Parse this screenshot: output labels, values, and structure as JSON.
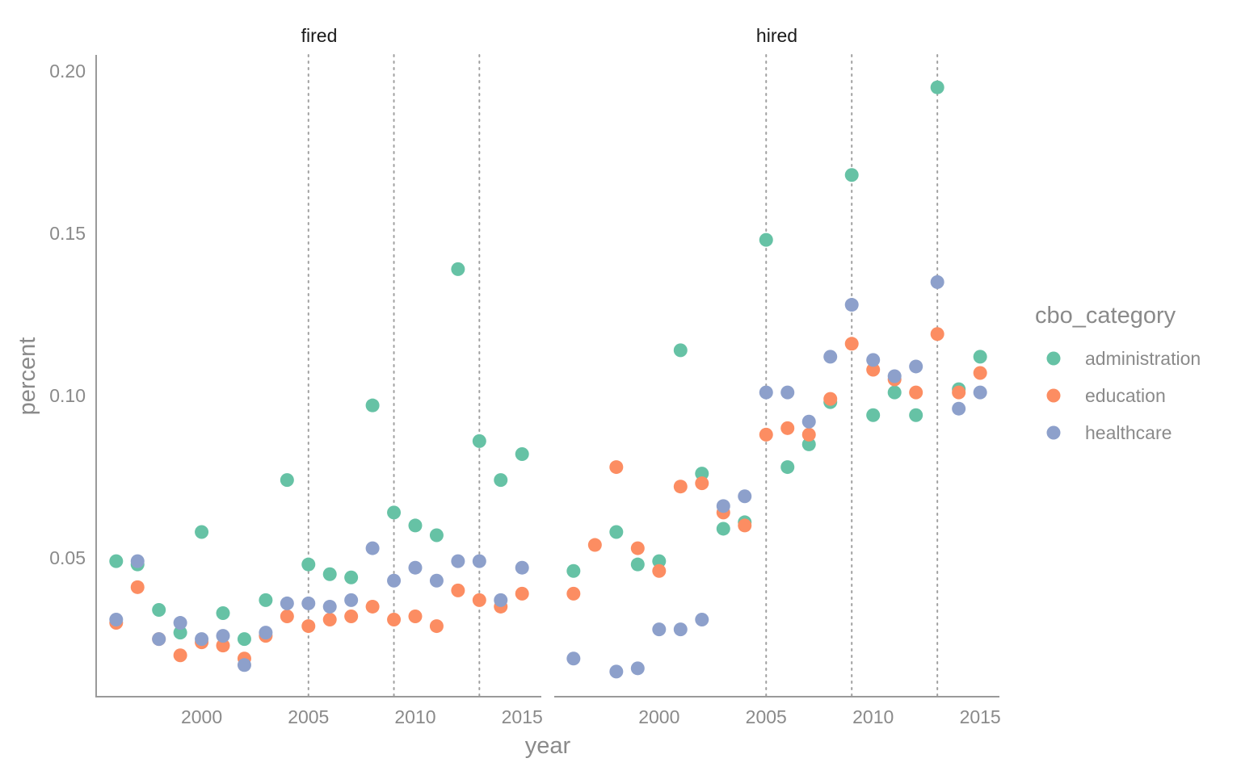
{
  "chart_data": {
    "type": "scatter",
    "xlabel": "year",
    "ylabel": "percent",
    "xlim": [
      1995.1,
      2015.9
    ],
    "ylim": [
      0.0075,
      0.205
    ],
    "x_ticks": [
      2000,
      2005,
      2010,
      2015
    ],
    "y_ticks": [
      0.05,
      0.1,
      0.15,
      0.2
    ],
    "y_tick_labels": [
      "0.05",
      "0.10",
      "0.15",
      "0.20"
    ],
    "vlines": [
      2005,
      2009,
      2013
    ],
    "grid": false,
    "legend": {
      "title": "cbo_category",
      "position": "right",
      "entries": [
        "administration",
        "education",
        "healthcare"
      ]
    },
    "colors": {
      "administration": "#66c2a5",
      "education": "#fc8d62",
      "healthcare": "#8da0cb",
      "axis": "#9a9a9a",
      "vline": "#a0a0a0"
    },
    "panels": [
      {
        "title": "fired",
        "series": [
          {
            "name": "administration",
            "x": [
              1996,
              1997,
              1998,
              1999,
              2000,
              2001,
              2002,
              2003,
              2004,
              2005,
              2006,
              2007,
              2008,
              2009,
              2010,
              2011,
              2012,
              2013,
              2014,
              2015
            ],
            "y": [
              0.049,
              0.048,
              0.034,
              0.027,
              0.058,
              0.033,
              0.025,
              0.037,
              0.074,
              0.048,
              0.045,
              0.044,
              0.097,
              0.064,
              0.06,
              0.057,
              0.139,
              0.086,
              0.074,
              0.082
            ]
          },
          {
            "name": "education",
            "x": [
              1996,
              1997,
              1998,
              1999,
              2000,
              2001,
              2002,
              2003,
              2004,
              2005,
              2006,
              2007,
              2008,
              2009,
              2010,
              2011,
              2012,
              2013,
              2014,
              2015
            ],
            "y": [
              0.03,
              0.041,
              0.025,
              0.02,
              0.024,
              0.023,
              0.019,
              0.026,
              0.032,
              0.029,
              0.031,
              0.032,
              0.035,
              0.031,
              0.032,
              0.029,
              0.04,
              0.037,
              0.035,
              0.039
            ]
          },
          {
            "name": "healthcare",
            "x": [
              1996,
              1997,
              1998,
              1999,
              2000,
              2001,
              2002,
              2003,
              2004,
              2005,
              2006,
              2007,
              2008,
              2009,
              2010,
              2011,
              2012,
              2013,
              2014,
              2015
            ],
            "y": [
              0.031,
              0.049,
              0.025,
              0.03,
              0.025,
              0.026,
              0.017,
              0.027,
              0.036,
              0.036,
              0.035,
              0.037,
              0.053,
              0.043,
              0.047,
              0.043,
              0.049,
              0.049,
              0.037,
              0.047
            ]
          }
        ]
      },
      {
        "title": "hired",
        "series": [
          {
            "name": "administration",
            "x": [
              1996,
              1998,
              1999,
              2000,
              2001,
              2002,
              2003,
              2004,
              2005,
              2006,
              2007,
              2008,
              2009,
              2010,
              2011,
              2012,
              2013,
              2014,
              2015
            ],
            "y": [
              0.046,
              0.058,
              0.048,
              0.049,
              0.114,
              0.076,
              0.059,
              0.061,
              0.148,
              0.078,
              0.085,
              0.098,
              0.168,
              0.094,
              0.101,
              0.094,
              0.195,
              0.102,
              0.112
            ]
          },
          {
            "name": "education",
            "x": [
              1996,
              1997,
              1998,
              1999,
              2000,
              2001,
              2002,
              2003,
              2004,
              2005,
              2006,
              2007,
              2008,
              2009,
              2010,
              2011,
              2012,
              2013,
              2014,
              2015
            ],
            "y": [
              0.039,
              0.054,
              0.078,
              0.053,
              0.046,
              0.072,
              0.073,
              0.064,
              0.06,
              0.088,
              0.09,
              0.088,
              0.099,
              0.116,
              0.108,
              0.105,
              0.101,
              0.119,
              0.101,
              0.107
            ]
          },
          {
            "name": "healthcare",
            "x": [
              1996,
              1998,
              1999,
              2000,
              2001,
              2002,
              2003,
              2004,
              2005,
              2006,
              2007,
              2008,
              2009,
              2010,
              2011,
              2012,
              2013,
              2014,
              2015
            ],
            "y": [
              0.019,
              0.015,
              0.016,
              0.028,
              0.028,
              0.031,
              0.066,
              0.069,
              0.101,
              0.101,
              0.092,
              0.112,
              0.128,
              0.111,
              0.106,
              0.109,
              0.135,
              0.096,
              0.101
            ]
          }
        ]
      }
    ]
  }
}
